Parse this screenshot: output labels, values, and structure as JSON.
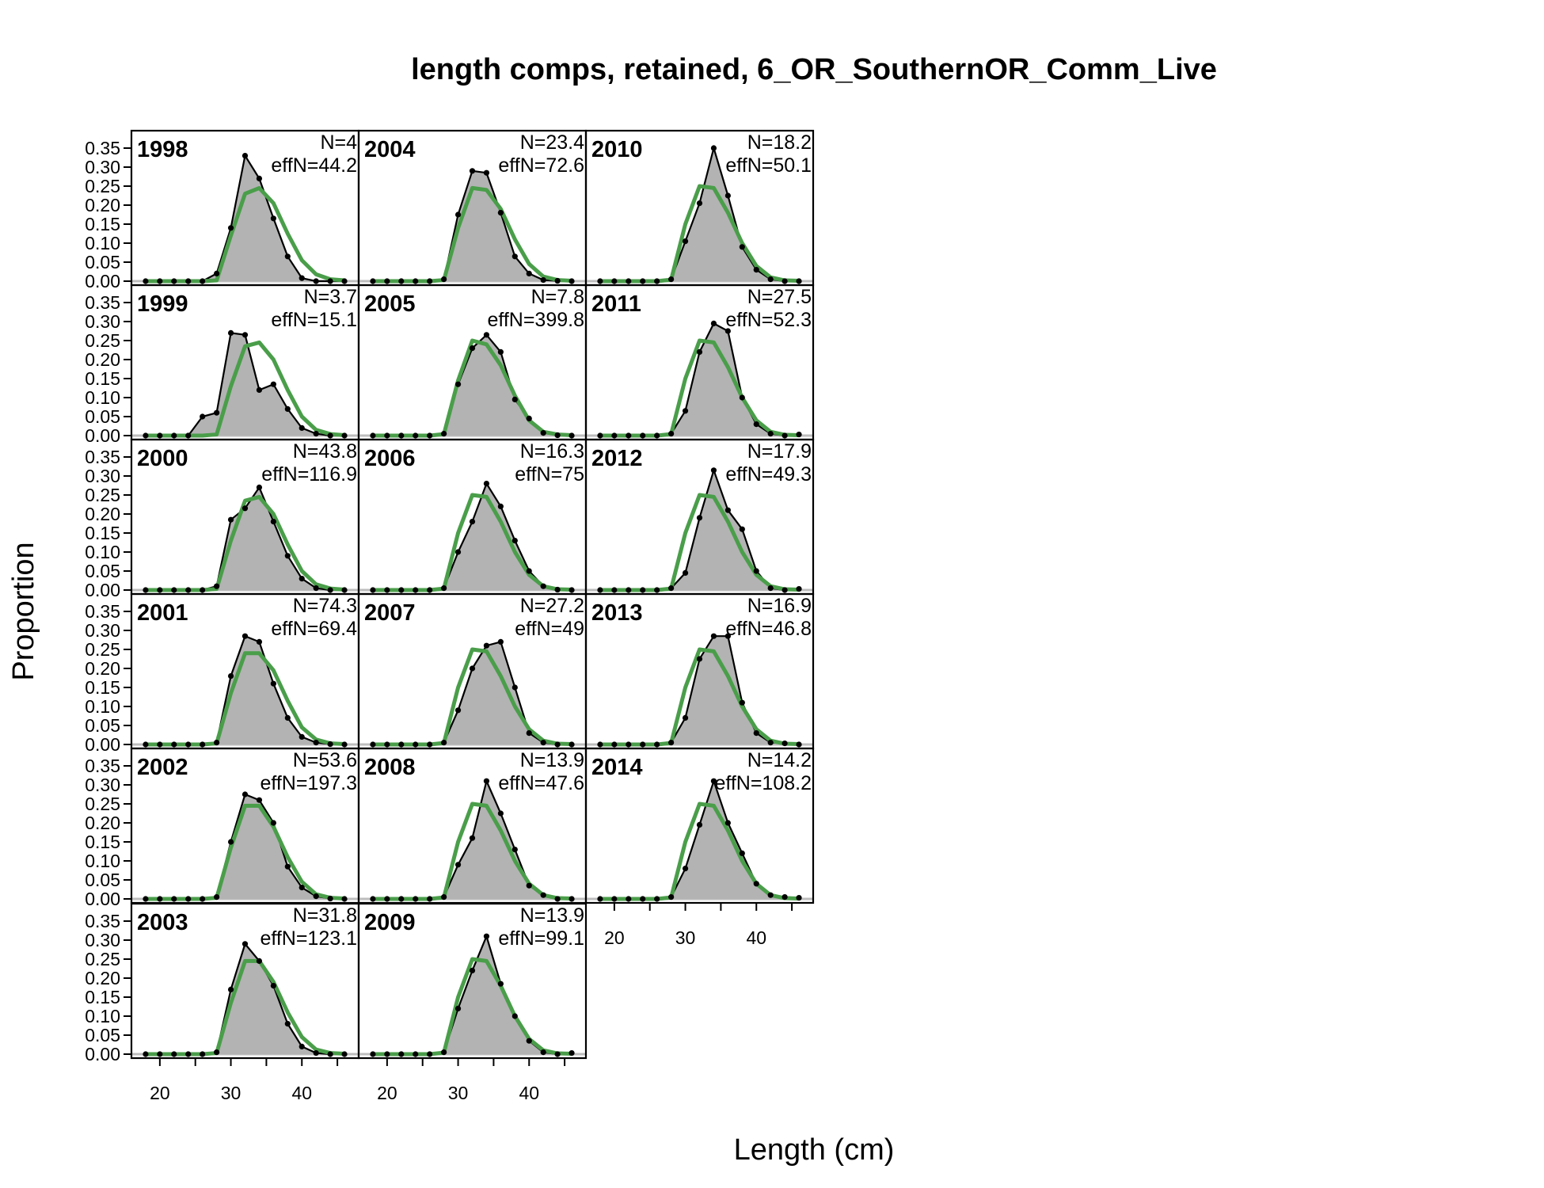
{
  "chart_data": {
    "type": "area",
    "title": "length comps, retained, 6_OR_SouthernOR_Comm_Live",
    "xlabel": "Length (cm)",
    "ylabel": "Proportion",
    "ylim": [
      0,
      0.35
    ],
    "y_ticks": [
      "0.00",
      "0.05",
      "0.10",
      "0.15",
      "0.20",
      "0.25",
      "0.30",
      "0.35"
    ],
    "x_ticks": [
      "20",
      "30",
      "40"
    ],
    "x": [
      18,
      20,
      22,
      24,
      26,
      28,
      30,
      32,
      34,
      36,
      38,
      40,
      42,
      44,
      46
    ],
    "colors": {
      "observed_fill": "#b3b3b3",
      "observed_line": "#000000",
      "expected_line": "#4a9e4a"
    },
    "expected_series": [
      {
        "year": "1998",
        "values": [
          0,
          0,
          0,
          0,
          0,
          0.002,
          0.12,
          0.23,
          0.245,
          0.205,
          0.125,
          0.055,
          0.018,
          0.005,
          0.002
        ]
      },
      {
        "year": "1999",
        "values": [
          0,
          0,
          0,
          0,
          0,
          0.003,
          0.13,
          0.235,
          0.245,
          0.2,
          0.12,
          0.05,
          0.015,
          0.004,
          0.001
        ]
      },
      {
        "year": "2000",
        "values": [
          0,
          0,
          0,
          0,
          0,
          0.003,
          0.13,
          0.235,
          0.245,
          0.2,
          0.12,
          0.05,
          0.015,
          0.004,
          0.001
        ]
      },
      {
        "year": "2001",
        "values": [
          0,
          0,
          0,
          0,
          0,
          0.003,
          0.135,
          0.24,
          0.24,
          0.195,
          0.115,
          0.045,
          0.013,
          0.003,
          0.001
        ]
      },
      {
        "year": "2002",
        "values": [
          0,
          0,
          0,
          0,
          0,
          0.003,
          0.135,
          0.245,
          0.245,
          0.19,
          0.11,
          0.045,
          0.012,
          0.003,
          0.001
        ]
      },
      {
        "year": "2003",
        "values": [
          0,
          0,
          0,
          0,
          0,
          0.003,
          0.135,
          0.245,
          0.245,
          0.19,
          0.11,
          0.045,
          0.012,
          0.003,
          0.001
        ]
      },
      {
        "year": "2004",
        "values": [
          0,
          0,
          0,
          0,
          0,
          0.003,
          0.14,
          0.245,
          0.24,
          0.19,
          0.11,
          0.045,
          0.012,
          0.003,
          0.001
        ]
      },
      {
        "year": "2005",
        "values": [
          0,
          0,
          0,
          0,
          0,
          0.004,
          0.145,
          0.25,
          0.24,
          0.185,
          0.105,
          0.04,
          0.01,
          0.003,
          0.001
        ]
      },
      {
        "year": "2006",
        "values": [
          0,
          0,
          0,
          0,
          0,
          0.004,
          0.15,
          0.25,
          0.245,
          0.18,
          0.1,
          0.04,
          0.01,
          0.002,
          0.001
        ]
      },
      {
        "year": "2007",
        "values": [
          0,
          0,
          0,
          0,
          0,
          0.004,
          0.15,
          0.25,
          0.245,
          0.18,
          0.1,
          0.04,
          0.01,
          0.002,
          0.001
        ]
      },
      {
        "year": "2008",
        "values": [
          0,
          0,
          0,
          0,
          0,
          0.004,
          0.15,
          0.25,
          0.245,
          0.18,
          0.1,
          0.04,
          0.01,
          0.002,
          0.001
        ]
      },
      {
        "year": "2009",
        "values": [
          0,
          0,
          0,
          0,
          0,
          0.004,
          0.15,
          0.25,
          0.245,
          0.18,
          0.1,
          0.04,
          0.01,
          0.002,
          0.001
        ]
      },
      {
        "year": "2010",
        "values": [
          0,
          0,
          0,
          0,
          0,
          0.004,
          0.15,
          0.25,
          0.245,
          0.18,
          0.1,
          0.04,
          0.01,
          0.002,
          0.001
        ]
      },
      {
        "year": "2011",
        "values": [
          0,
          0,
          0,
          0,
          0,
          0.004,
          0.15,
          0.25,
          0.245,
          0.18,
          0.1,
          0.04,
          0.01,
          0.002,
          0.001
        ]
      },
      {
        "year": "2012",
        "values": [
          0,
          0,
          0,
          0,
          0,
          0.004,
          0.15,
          0.25,
          0.245,
          0.18,
          0.1,
          0.04,
          0.01,
          0.002,
          0.001
        ]
      },
      {
        "year": "2013",
        "values": [
          0,
          0,
          0,
          0,
          0,
          0.004,
          0.15,
          0.25,
          0.245,
          0.18,
          0.1,
          0.04,
          0.01,
          0.002,
          0.001
        ]
      },
      {
        "year": "2014",
        "values": [
          0,
          0,
          0,
          0,
          0,
          0.004,
          0.15,
          0.25,
          0.245,
          0.18,
          0.1,
          0.04,
          0.01,
          0.002,
          0.001
        ]
      }
    ],
    "panels": [
      {
        "year": "1998",
        "n_label": "N=4",
        "effn_label": "effN=44.2",
        "observed": [
          0,
          0,
          0,
          0,
          0,
          0.02,
          0.14,
          0.33,
          0.27,
          0.165,
          0.065,
          0.008,
          0,
          0,
          0
        ]
      },
      {
        "year": "1999",
        "n_label": "N=3.7",
        "effn_label": "effN=15.1",
        "observed": [
          0,
          0,
          0,
          0,
          0.05,
          0.06,
          0.27,
          0.265,
          0.12,
          0.135,
          0.07,
          0.02,
          0.005,
          0,
          0
        ]
      },
      {
        "year": "2000",
        "n_label": "N=43.8",
        "effn_label": "effN=116.9",
        "observed": [
          0,
          0,
          0,
          0,
          0,
          0.01,
          0.185,
          0.215,
          0.27,
          0.18,
          0.09,
          0.03,
          0.005,
          0,
          0
        ]
      },
      {
        "year": "2001",
        "n_label": "N=74.3",
        "effn_label": "effN=69.4",
        "observed": [
          0,
          0,
          0,
          0,
          0,
          0.005,
          0.18,
          0.285,
          0.27,
          0.16,
          0.07,
          0.02,
          0.005,
          0.001,
          0
        ]
      },
      {
        "year": "2002",
        "n_label": "N=53.6",
        "effn_label": "effN=197.3",
        "observed": [
          0,
          0,
          0,
          0,
          0,
          0.005,
          0.15,
          0.275,
          0.26,
          0.2,
          0.085,
          0.03,
          0.007,
          0.001,
          0
        ]
      },
      {
        "year": "2003",
        "n_label": "N=31.8",
        "effn_label": "effN=123.1",
        "observed": [
          0,
          0,
          0,
          0,
          0,
          0.005,
          0.17,
          0.29,
          0.245,
          0.18,
          0.08,
          0.02,
          0.003,
          0,
          0
        ]
      },
      {
        "year": "2004",
        "n_label": "N=23.4",
        "effn_label": "effN=72.6",
        "observed": [
          0,
          0,
          0,
          0,
          0,
          0.005,
          0.175,
          0.29,
          0.285,
          0.18,
          0.065,
          0.02,
          0.003,
          0.001,
          0
        ]
      },
      {
        "year": "2005",
        "n_label": "N=7.8",
        "effn_label": "effN=399.8",
        "observed": [
          0,
          0,
          0,
          0,
          0,
          0.005,
          0.135,
          0.23,
          0.265,
          0.22,
          0.095,
          0.045,
          0.007,
          0.001,
          0
        ]
      },
      {
        "year": "2006",
        "n_label": "N=16.3",
        "effn_label": "effN=75",
        "observed": [
          0,
          0,
          0,
          0,
          0,
          0.005,
          0.1,
          0.18,
          0.28,
          0.22,
          0.13,
          0.05,
          0.01,
          0.001,
          0
        ]
      },
      {
        "year": "2007",
        "n_label": "N=27.2",
        "effn_label": "effN=49",
        "observed": [
          0,
          0,
          0,
          0,
          0,
          0.005,
          0.09,
          0.2,
          0.26,
          0.27,
          0.15,
          0.03,
          0.005,
          0,
          0
        ]
      },
      {
        "year": "2008",
        "n_label": "N=13.9",
        "effn_label": "effN=47.6",
        "observed": [
          0,
          0,
          0,
          0,
          0,
          0.005,
          0.09,
          0.16,
          0.31,
          0.225,
          0.13,
          0.035,
          0.01,
          0,
          0
        ]
      },
      {
        "year": "2009",
        "n_label": "N=13.9",
        "effn_label": "effN=99.1",
        "observed": [
          0,
          0,
          0,
          0,
          0,
          0.005,
          0.12,
          0.22,
          0.31,
          0.185,
          0.1,
          0.035,
          0.005,
          0,
          0.003
        ]
      },
      {
        "year": "2010",
        "n_label": "N=18.2",
        "effn_label": "effN=50.1",
        "observed": [
          0,
          0,
          0,
          0,
          0,
          0.005,
          0.105,
          0.205,
          0.35,
          0.225,
          0.09,
          0.03,
          0.005,
          0,
          0
        ]
      },
      {
        "year": "2011",
        "n_label": "N=27.5",
        "effn_label": "effN=52.3",
        "observed": [
          0,
          0,
          0,
          0,
          0,
          0.005,
          0.065,
          0.22,
          0.295,
          0.275,
          0.1,
          0.03,
          0.005,
          0,
          0.003
        ]
      },
      {
        "year": "2012",
        "n_label": "N=17.9",
        "effn_label": "effN=49.3",
        "observed": [
          0,
          0,
          0,
          0,
          0,
          0.005,
          0.045,
          0.19,
          0.315,
          0.21,
          0.16,
          0.05,
          0.005,
          0,
          0.003
        ]
      },
      {
        "year": "2013",
        "n_label": "N=16.9",
        "effn_label": "effN=46.8",
        "observed": [
          0,
          0,
          0,
          0,
          0,
          0.005,
          0.07,
          0.225,
          0.285,
          0.285,
          0.11,
          0.03,
          0.005,
          0.003,
          0
        ]
      },
      {
        "year": "2014",
        "n_label": "N=14.2",
        "effn_label": "effN=108.2",
        "observed": [
          0,
          0,
          0,
          0,
          0,
          0.005,
          0.08,
          0.195,
          0.31,
          0.2,
          0.12,
          0.04,
          0.01,
          0.005,
          0.003
        ]
      }
    ]
  }
}
